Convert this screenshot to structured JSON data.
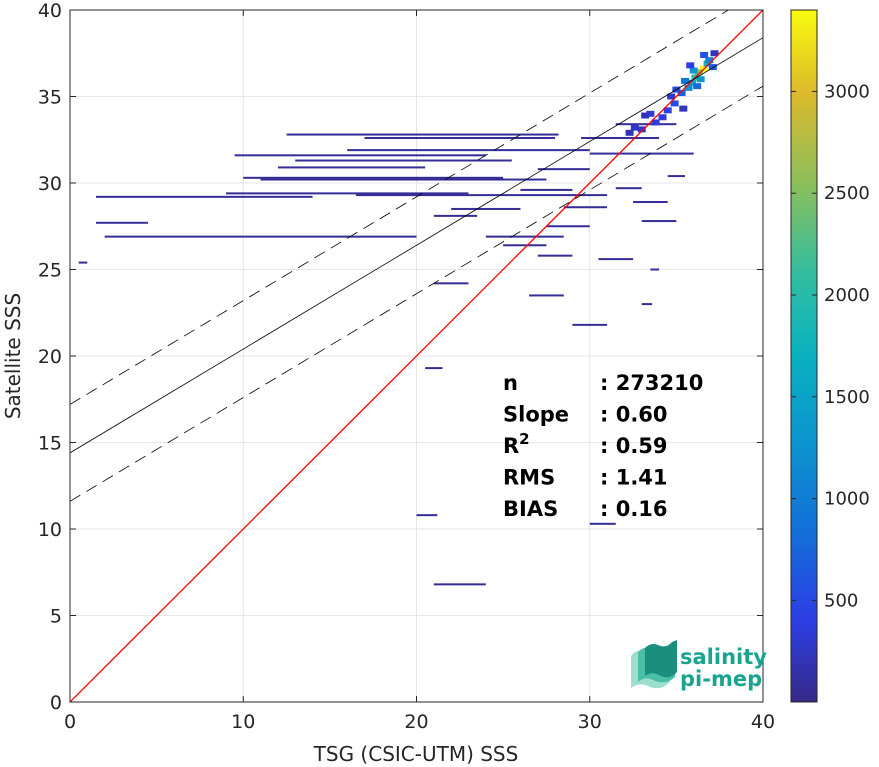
{
  "chart_data": {
    "type": "heatmap",
    "xlabel": "TSG (CSIC-UTM) SSS",
    "ylabel": "Satellite SSS",
    "xlim": [
      0,
      40
    ],
    "ylim": [
      0,
      40
    ],
    "x_ticks": [
      0,
      10,
      20,
      30,
      40
    ],
    "y_ticks": [
      0,
      5,
      10,
      15,
      20,
      25,
      30,
      35,
      40
    ],
    "grid": true,
    "identity_line": {
      "color": "#ff0000",
      "from": [
        0,
        0
      ],
      "to": [
        40,
        40
      ]
    },
    "regression": {
      "intercept": 14.4,
      "slope": 0.6,
      "band": 2.8,
      "color": "#000000"
    },
    "stats": [
      {
        "name": "n",
        "value": ": 273210"
      },
      {
        "name": "Slope",
        "value": ": 0.60"
      },
      {
        "name": "R",
        "sup": "2",
        "value": ": 0.59"
      },
      {
        "name": "RMS",
        "value": ": 1.41"
      },
      {
        "name": "BIAS",
        "value": ": 0.16"
      }
    ],
    "colorbar": {
      "min": 1,
      "max": 3400,
      "ticks": [
        500,
        1000,
        1500,
        2000,
        2500,
        3000
      ],
      "colormap": "parula"
    },
    "density_cells": [
      [
        36.6,
        36.6,
        3400
      ],
      [
        36.3,
        36.4,
        2600
      ],
      [
        36.1,
        36.1,
        2000
      ],
      [
        36.8,
        36.9,
        1800
      ],
      [
        35.9,
        35.8,
        1600
      ],
      [
        36.4,
        36.0,
        1400
      ],
      [
        36.0,
        36.5,
        1300
      ],
      [
        35.7,
        35.5,
        1200
      ],
      [
        36.9,
        37.1,
        1100
      ],
      [
        35.5,
        35.9,
        900
      ],
      [
        36.2,
        35.6,
        800
      ],
      [
        35.3,
        35.2,
        700
      ],
      [
        37.1,
        36.7,
        650
      ],
      [
        36.6,
        37.4,
        600
      ],
      [
        34.9,
        34.6,
        550
      ],
      [
        35.0,
        35.4,
        500
      ],
      [
        34.5,
        34.2,
        450
      ],
      [
        35.8,
        36.8,
        400
      ],
      [
        34.2,
        33.8,
        380
      ],
      [
        33.8,
        33.5,
        350
      ],
      [
        33.5,
        34.0,
        320
      ],
      [
        33.0,
        33.1,
        300
      ],
      [
        34.7,
        35.0,
        280
      ],
      [
        32.6,
        33.2,
        250
      ],
      [
        37.2,
        37.5,
        240
      ],
      [
        35.4,
        34.3,
        220
      ],
      [
        32.3,
        32.9,
        200
      ],
      [
        33.2,
        33.9,
        200
      ]
    ],
    "horizontal_streaks": [
      [
        12.5,
        28.2,
        32.8
      ],
      [
        17.0,
        28.0,
        32.6
      ],
      [
        13.0,
        25.5,
        31.3
      ],
      [
        9.5,
        24.0,
        31.6
      ],
      [
        16.0,
        30.0,
        31.9
      ],
      [
        10.0,
        25.0,
        30.3
      ],
      [
        11.0,
        27.5,
        30.2
      ],
      [
        9.0,
        23.0,
        29.4
      ],
      [
        1.5,
        14.0,
        29.2
      ],
      [
        16.5,
        31.0,
        29.3
      ],
      [
        12.0,
        20.5,
        30.9
      ],
      [
        2.0,
        20.0,
        26.9
      ],
      [
        1.5,
        4.5,
        27.7
      ],
      [
        21.0,
        23.5,
        28.1
      ],
      [
        22.0,
        26.0,
        28.5
      ],
      [
        24.0,
        28.5,
        26.9
      ],
      [
        27.5,
        30.0,
        27.5
      ],
      [
        25.0,
        27.5,
        26.4
      ],
      [
        28.5,
        31.0,
        28.6
      ],
      [
        30.0,
        36.0,
        31.7
      ],
      [
        29.5,
        34.0,
        32.6
      ],
      [
        31.5,
        35.0,
        33.4
      ],
      [
        27.0,
        30.0,
        30.8
      ],
      [
        26.0,
        29.0,
        29.6
      ],
      [
        30.5,
        32.5,
        25.6
      ],
      [
        32.5,
        34.5,
        28.9
      ],
      [
        33.0,
        35.0,
        27.8
      ],
      [
        21.0,
        23.0,
        24.2
      ],
      [
        29.0,
        31.0,
        21.8
      ],
      [
        20.5,
        21.5,
        19.3
      ],
      [
        20.0,
        21.2,
        10.8
      ],
      [
        21.0,
        24.0,
        6.8
      ],
      [
        30.0,
        31.5,
        10.3
      ],
      [
        0.5,
        1.0,
        25.4
      ],
      [
        33.0,
        33.6,
        23.0
      ],
      [
        33.5,
        34.0,
        25.0
      ],
      [
        27.0,
        29.0,
        25.8
      ],
      [
        26.5,
        28.5,
        23.5
      ],
      [
        34.5,
        35.5,
        30.4
      ],
      [
        31.5,
        33.0,
        29.7
      ]
    ]
  },
  "logo": {
    "line1": "salinity",
    "line2": "pi-mep"
  }
}
